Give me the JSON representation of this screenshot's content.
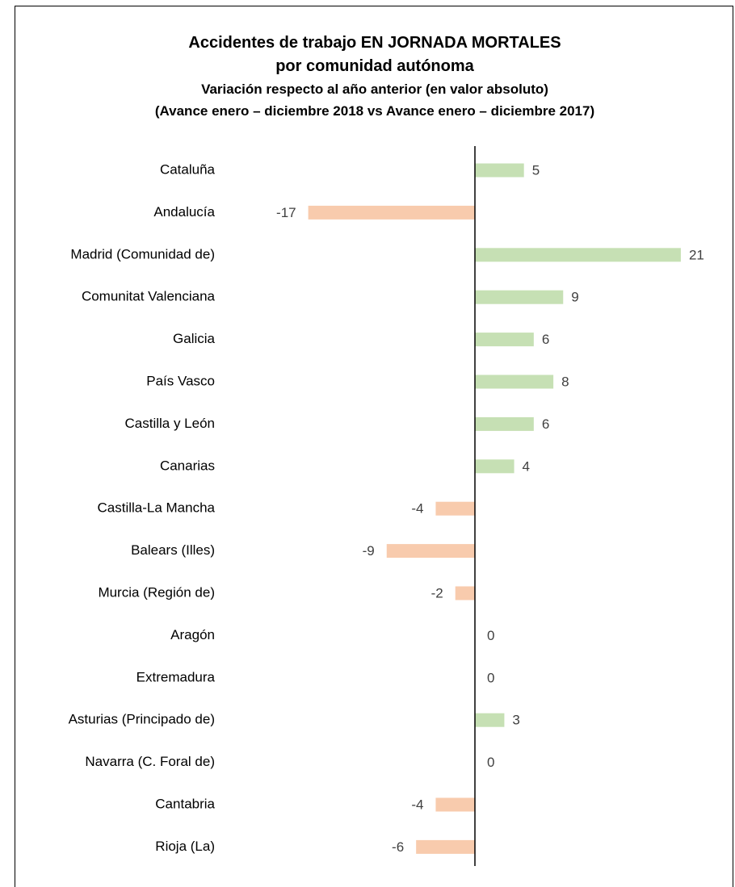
{
  "chart_data": {
    "type": "bar",
    "orientation": "horizontal",
    "title": "Accidentes de trabajo EN JORNADA MORTALES",
    "title_line2": "por comunidad autónoma",
    "subtitle": "Variación respecto al año anterior (en valor absoluto)",
    "subtitle_line2": "(Avance enero – diciembre 2018 vs Avance enero – diciembre 2017)",
    "categories": [
      "Cataluña",
      "Andalucía",
      "Madrid (Comunidad de)",
      "Comunitat Valenciana",
      "Galicia",
      "País Vasco",
      "Castilla y León",
      "Canarias",
      "Castilla-La Mancha",
      "Balears (Illes)",
      "Murcia (Región de)",
      "Aragón",
      "Extremadura",
      "Asturias (Principado de)",
      "Navarra (C. Foral de)",
      "Cantabria",
      "Rioja (La)"
    ],
    "values": [
      5,
      -17,
      21,
      9,
      6,
      8,
      6,
      4,
      -4,
      -9,
      -2,
      0,
      0,
      3,
      0,
      -4,
      -6
    ],
    "colors": {
      "positive": "#c6e0b4",
      "negative": "#f8cbad",
      "axis": "#000000",
      "label": "#000000",
      "value_label": "#404040"
    },
    "grid": false,
    "legend": "none"
  }
}
